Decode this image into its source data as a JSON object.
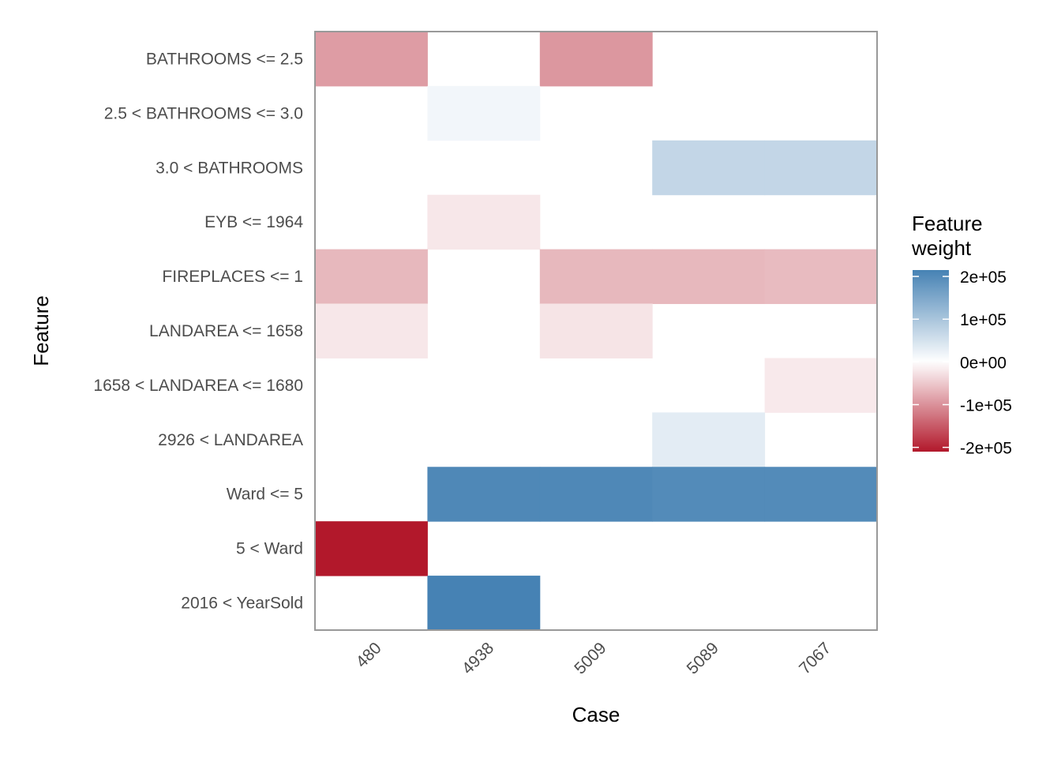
{
  "chart_data": {
    "type": "heatmap",
    "xlabel": "Case",
    "ylabel": "Feature",
    "x_categories": [
      "480",
      "4938",
      "5009",
      "5089",
      "7067"
    ],
    "y_categories": [
      "BATHROOMS <= 2.5",
      "2.5 < BATHROOMS <= 3.0",
      "3.0 < BATHROOMS",
      "EYB <= 1964",
      "FIREPLACES <= 1",
      "LANDAREA <= 1658",
      "1658 < LANDAREA <= 1680",
      "2926 < LANDAREA",
      "Ward <= 5",
      "5 < Ward",
      "2016 < YearSold"
    ],
    "cells": [
      {
        "case": "480",
        "feature": "BATHROOMS <= 2.5",
        "value": -90000
      },
      {
        "case": "5009",
        "feature": "BATHROOMS <= 2.5",
        "value": -95000
      },
      {
        "case": "4938",
        "feature": "2.5 < BATHROOMS <= 3.0",
        "value": 15000
      },
      {
        "case": "5089",
        "feature": "3.0 < BATHROOMS",
        "value": 70000
      },
      {
        "case": "7067",
        "feature": "3.0 < BATHROOMS",
        "value": 70000
      },
      {
        "case": "4938",
        "feature": "EYB <= 1964",
        "value": -22000
      },
      {
        "case": "480",
        "feature": "FIREPLACES <= 1",
        "value": -65000
      },
      {
        "case": "5009",
        "feature": "FIREPLACES <= 1",
        "value": -65000
      },
      {
        "case": "5089",
        "feature": "FIREPLACES <= 1",
        "value": -65000
      },
      {
        "case": "7067",
        "feature": "FIREPLACES <= 1",
        "value": -62000
      },
      {
        "case": "480",
        "feature": "LANDAREA <= 1658",
        "value": -22000
      },
      {
        "case": "5009",
        "feature": "LANDAREA <= 1658",
        "value": -25000
      },
      {
        "case": "7067",
        "feature": "1658 < LANDAREA <= 1680",
        "value": -20000
      },
      {
        "case": "5089",
        "feature": "2926 < LANDAREA",
        "value": 32000
      },
      {
        "case": "4938",
        "feature": "Ward <= 5",
        "value": 205000
      },
      {
        "case": "5009",
        "feature": "Ward <= 5",
        "value": 205000
      },
      {
        "case": "5089",
        "feature": "Ward <= 5",
        "value": 200000
      },
      {
        "case": "7067",
        "feature": "Ward <= 5",
        "value": 200000
      },
      {
        "case": "480",
        "feature": "5 < Ward",
        "value": -210000
      },
      {
        "case": "4938",
        "feature": "2016 < YearSold",
        "value": 215000
      }
    ],
    "legend": {
      "title_lines": [
        "Feature",
        "weight"
      ],
      "ticks": [
        {
          "label": "2e+05",
          "value": 200000
        },
        {
          "label": "1e+05",
          "value": 100000
        },
        {
          "label": "0e+00",
          "value": 0
        },
        {
          "label": "-1e+05",
          "value": -100000
        },
        {
          "label": "-2e+05",
          "value": -200000
        }
      ],
      "range": [
        -210000,
        215000
      ],
      "placement": "right"
    },
    "colors": {
      "low": "#b2182b",
      "mid": "#ffffff",
      "high": "#4682b4",
      "panel_border": "#999999"
    }
  }
}
